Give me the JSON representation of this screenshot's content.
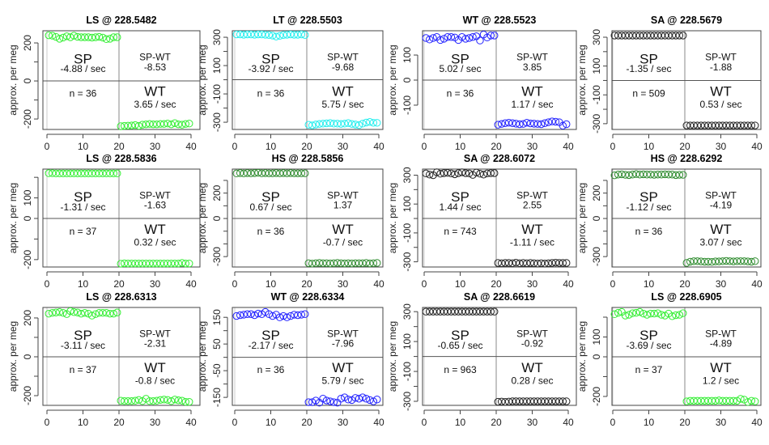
{
  "labels": {
    "sp": "SP",
    "wt": "WT",
    "spwt": "SP-WT",
    "ylabel": "approx. per meg",
    "rate_unit": " / sec",
    "n_prefix": "n = "
  },
  "colors": {
    "LS": "#33ee33",
    "LT": "#22eeee",
    "WT": "#2222ff",
    "SA": "#222222",
    "HS": "#2e8b2e"
  },
  "chart_data": [
    {
      "type": "scatter",
      "title": "LS @ 228.5482",
      "species": "LS",
      "ylim": [
        -255,
        264
      ],
      "yticks": [
        -200,
        -100,
        0,
        100,
        200
      ],
      "ylabels": [
        -200,
        0,
        200
      ],
      "xticks": [
        0,
        10,
        20,
        30,
        40
      ],
      "sp_rate": "-4.88",
      "sp_wt": "-8.53",
      "wt_rate": "3.65",
      "n": "36",
      "sp_values": [
        240,
        238,
        232,
        222,
        228,
        235,
        230,
        238,
        232,
        230,
        230,
        230,
        228,
        230,
        232,
        228,
        220,
        222,
        230,
        230
      ],
      "wt_values": [
        -238,
        -236,
        -235,
        -234,
        -232,
        -236,
        -230,
        -228,
        -226,
        -228,
        -228,
        -226,
        -226,
        -224,
        -228,
        -222,
        -228,
        -230,
        -226,
        -224
      ]
    },
    {
      "type": "scatter",
      "title": "LT @ 228.5503",
      "species": "LT",
      "ylim": [
        -351,
        346
      ],
      "yticks": [
        -300,
        -200,
        -100,
        0,
        100,
        200,
        300
      ],
      "ylabels": [
        -300,
        -100,
        100,
        300
      ],
      "xticks": [
        0,
        10,
        20,
        30,
        40
      ],
      "sp_rate": "-3.92",
      "sp_wt": "-9.68",
      "wt_rate": "5.75",
      "n": "36",
      "sp_values": [
        320,
        320,
        318,
        320,
        320,
        318,
        320,
        320,
        318,
        316,
        312,
        305,
        310,
        316,
        318,
        320,
        318,
        318,
        320,
        316
      ],
      "wt_values": [
        -318,
        -322,
        -316,
        -312,
        -310,
        -308,
        -306,
        -310,
        -310,
        -312,
        -310,
        -306,
        -312,
        -316,
        -320,
        -310,
        -302,
        -298,
        -304,
        -304
      ]
    },
    {
      "type": "scatter",
      "title": "WT @ 228.5523",
      "species": "WT",
      "ylim": [
        -197,
        197
      ],
      "yticks": [
        -100,
        0,
        100
      ],
      "ylabels": [
        -100,
        0,
        100
      ],
      "xticks": [
        0,
        10,
        20,
        30,
        40
      ],
      "sp_rate": "5.02",
      "sp_wt": "3.85",
      "wt_rate": "1.17",
      "n": "36",
      "sp_values": [
        168,
        162,
        168,
        172,
        160,
        165,
        172,
        172,
        170,
        160,
        172,
        165,
        168,
        172,
        175,
        158,
        182,
        170,
        178,
        178
      ],
      "wt_values": [
        -178,
        -175,
        -172,
        -170,
        -172,
        -174,
        -176,
        -175,
        -170,
        -173,
        -174,
        -175,
        -176,
        -172,
        -168,
        -165,
        -166,
        -168,
        -182,
        -176
      ]
    },
    {
      "type": "scatter",
      "title": "SA @ 228.5679",
      "species": "SA",
      "ylim": [
        -340,
        345
      ],
      "yticks": [
        -300,
        -200,
        -100,
        0,
        100,
        200,
        300
      ],
      "ylabels": [
        -300,
        -100,
        100,
        300
      ],
      "xticks": [
        0,
        10,
        20,
        30,
        40
      ],
      "sp_rate": "-1.35",
      "sp_wt": "-1.88",
      "wt_rate": "0.53",
      "n": "509",
      "sp_values": [
        312,
        312,
        312,
        312,
        312,
        312,
        312,
        312,
        312,
        312,
        312,
        312,
        312,
        312,
        312,
        312,
        312,
        312,
        312,
        312
      ],
      "wt_values": [
        -312,
        -312,
        -312,
        -312,
        -312,
        -312,
        -312,
        -312,
        -312,
        -312,
        -312,
        -312,
        -312,
        -312,
        -312,
        -312,
        -312,
        -312,
        -312,
        -312
      ]
    },
    {
      "type": "scatter",
      "title": "LS @ 228.5836",
      "species": "LS",
      "ylim": [
        -236,
        240
      ],
      "yticks": [
        -200,
        -100,
        0,
        100,
        200
      ],
      "ylabels": [
        -200,
        0,
        100
      ],
      "xticks": [
        0,
        10,
        20,
        30,
        40
      ],
      "sp_rate": "-1.31",
      "sp_wt": "-1.63",
      "wt_rate": "0.32",
      "n": "37",
      "sp_values": [
        220,
        220,
        219,
        219,
        219,
        219,
        219,
        219,
        219,
        219,
        219,
        219,
        219,
        219,
        219,
        219,
        219,
        219,
        219,
        219
      ],
      "wt_values": [
        -220,
        -218,
        -219,
        -219,
        -219,
        -219,
        -219,
        -219,
        -219,
        -219,
        -219,
        -219,
        -219,
        -219,
        -219,
        -219,
        -219,
        -216,
        -219,
        -219
      ]
    },
    {
      "type": "scatter",
      "title": "HS @ 228.5856",
      "species": "HS",
      "ylim": [
        -382,
        389
      ],
      "yticks": [
        -300,
        -200,
        -100,
        0,
        100,
        200,
        300
      ],
      "ylabels": [
        -300,
        0,
        200
      ],
      "xticks": [
        0,
        10,
        20,
        30,
        40
      ],
      "sp_rate": "0.67",
      "sp_wt": "1.37",
      "wt_rate": "-0.7",
      "n": "36",
      "sp_values": [
        355,
        358,
        355,
        358,
        356,
        358,
        360,
        356,
        358,
        356,
        356,
        358,
        356,
        358,
        356,
        358,
        356,
        356,
        356,
        356
      ],
      "wt_values": [
        -352,
        -355,
        -352,
        -350,
        -352,
        -352,
        -354,
        -352,
        -350,
        -352,
        -354,
        -352,
        -354,
        -352,
        -352,
        -352,
        -350,
        -354,
        -352,
        -350
      ]
    },
    {
      "type": "scatter",
      "title": "SA @ 228.6072",
      "species": "SA",
      "ylim": [
        -336,
        342
      ],
      "yticks": [
        -300,
        -200,
        -100,
        0,
        100,
        200,
        300
      ],
      "ylabels": [
        -300,
        -100,
        100,
        300
      ],
      "xticks": [
        0,
        10,
        20,
        30,
        40
      ],
      "sp_rate": "1.44",
      "sp_wt": "2.55",
      "wt_rate": "-1.11",
      "n": "743",
      "sp_values": [
        312,
        304,
        300,
        320,
        310,
        314,
        316,
        312,
        306,
        314,
        320,
        314,
        312,
        302,
        318,
        310,
        304,
        312,
        314,
        314
      ],
      "wt_values": [
        -308,
        -310,
        -308,
        -308,
        -310,
        -306,
        -310,
        -308,
        -310,
        -308,
        -310,
        -312,
        -310,
        -312,
        -310,
        -308,
        -306,
        -308,
        -308,
        -308
      ]
    },
    {
      "type": "scatter",
      "title": "HS @ 228.6292",
      "species": "HS",
      "ylim": [
        -382,
        389
      ],
      "yticks": [
        -300,
        -200,
        -100,
        0,
        100,
        200,
        300
      ],
      "ylabels": [
        -300,
        0,
        200
      ],
      "xticks": [
        0,
        10,
        20,
        30,
        40
      ],
      "sp_rate": "-1.12",
      "sp_wt": "-4.19",
      "wt_rate": "3.07",
      "n": "36",
      "sp_values": [
        340,
        346,
        348,
        344,
        342,
        346,
        350,
        346,
        348,
        346,
        346,
        344,
        346,
        346,
        348,
        346,
        346,
        342,
        344,
        344
      ],
      "wt_values": [
        -350,
        -340,
        -336,
        -336,
        -338,
        -340,
        -340,
        -342,
        -338,
        -338,
        -336,
        -334,
        -336,
        -338,
        -336,
        -336,
        -336,
        -338,
        -340,
        -336
      ]
    },
    {
      "type": "scatter",
      "title": "LS @ 228.6313",
      "species": "LS",
      "ylim": [
        -250,
        254
      ],
      "yticks": [
        -200,
        -100,
        0,
        100,
        200
      ],
      "ylabels": [
        -200,
        0,
        200
      ],
      "xticks": [
        0,
        10,
        20,
        30,
        40
      ],
      "sp_rate": "-3.11",
      "sp_wt": "-2.31",
      "wt_rate": "-0.8",
      "n": "37",
      "sp_values": [
        222,
        226,
        228,
        230,
        226,
        220,
        235,
        230,
        228,
        222,
        226,
        222,
        212,
        220,
        226,
        226,
        226,
        222,
        222,
        228
      ],
      "wt_values": [
        -226,
        -228,
        -228,
        -228,
        -226,
        -222,
        -228,
        -216,
        -228,
        -228,
        -226,
        -222,
        -220,
        -222,
        -228,
        -220,
        -224,
        -226,
        -232,
        -232
      ]
    },
    {
      "type": "scatter",
      "title": "WT @ 228.6334",
      "species": "WT",
      "ylim": [
        -180,
        187
      ],
      "yticks": [
        -150,
        -100,
        -50,
        0,
        50,
        100,
        150
      ],
      "ylabels": [
        -150,
        -50,
        50,
        150
      ],
      "xticks": [
        0,
        10,
        20,
        30,
        40
      ],
      "sp_rate": "-2.17",
      "sp_wt": "-7.96",
      "wt_rate": "5.79",
      "n": "36",
      "sp_values": [
        155,
        158,
        160,
        162,
        162,
        158,
        164,
        162,
        170,
        162,
        155,
        160,
        150,
        155,
        150,
        155,
        160,
        158,
        160,
        162
      ],
      "wt_values": [
        -168,
        -168,
        -162,
        -170,
        -155,
        -162,
        -165,
        -168,
        -170,
        -155,
        -150,
        -158,
        -160,
        -152,
        -155,
        -150,
        -155,
        -160,
        -165,
        -158
      ]
    },
    {
      "type": "scatter",
      "title": "SA @ 228.6619",
      "species": "SA",
      "ylim": [
        -327,
        328
      ],
      "yticks": [
        -300,
        -200,
        -100,
        0,
        100,
        200,
        300
      ],
      "ylabels": [
        -300,
        -100,
        100,
        300
      ],
      "xticks": [
        0,
        10,
        20,
        30,
        40
      ],
      "sp_rate": "-0.65",
      "sp_wt": "-0.92",
      "wt_rate": "0.28",
      "n": "963",
      "sp_values": [
        300,
        300,
        300,
        300,
        300,
        300,
        300,
        300,
        300,
        300,
        300,
        300,
        300,
        300,
        300,
        300,
        300,
        300,
        300,
        300
      ],
      "wt_values": [
        -303,
        -302,
        -304,
        -302,
        -300,
        -300,
        -300,
        -300,
        -300,
        -300,
        -300,
        -300,
        -300,
        -300,
        -300,
        -300,
        -300,
        -300,
        -300,
        -300
      ]
    },
    {
      "type": "scatter",
      "title": "LS @ 228.6905",
      "species": "LS",
      "ylim": [
        -245,
        249
      ],
      "yticks": [
        -200,
        -100,
        0,
        100,
        200
      ],
      "ylabels": [
        -200,
        0,
        100
      ],
      "xticks": [
        0,
        10,
        20,
        30,
        40
      ],
      "sp_rate": "-3.69",
      "sp_wt": "-4.89",
      "wt_rate": "1.2",
      "n": "37",
      "sp_values": [
        215,
        222,
        226,
        208,
        212,
        220,
        222,
        226,
        218,
        212,
        218,
        218,
        220,
        212,
        208,
        218,
        205,
        210,
        212,
        220
      ],
      "wt_values": [
        -225,
        -222,
        -222,
        -222,
        -222,
        -222,
        -222,
        -222,
        -222,
        -220,
        -222,
        -222,
        -222,
        -222,
        -222,
        -212,
        -216,
        -228,
        -222,
        -225
      ]
    }
  ]
}
